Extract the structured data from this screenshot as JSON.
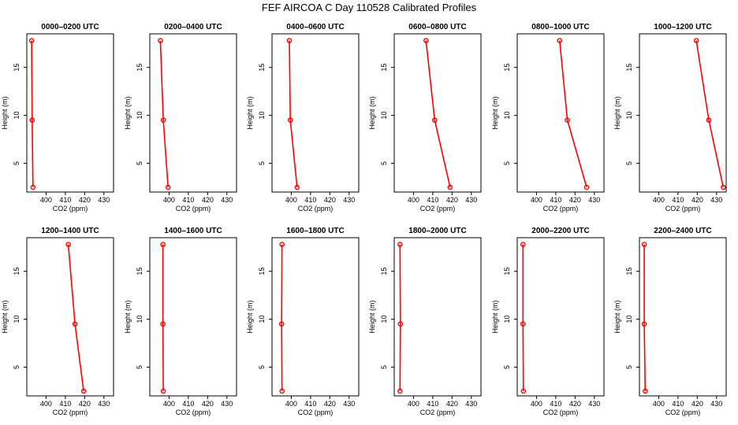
{
  "figure_title": "FEF AIRCOA C  Day 110528  Calibrated Profiles",
  "chart_data": [
    {
      "type": "line",
      "title": "0000–0200 UTC",
      "xlabel": "CO2 (ppm)",
      "ylabel": "Height (m)",
      "xlim": [
        390,
        435
      ],
      "ylim": [
        2,
        18.5
      ],
      "xticks": [
        400,
        410,
        420,
        430
      ],
      "yticks": [
        5,
        10,
        15
      ],
      "grid": false,
      "series": [
        {
          "color": "#ff0000",
          "points": [
            {
              "x": 392.5,
              "y": 17.8
            },
            {
              "x": 392.8,
              "y": 9.5
            },
            {
              "x": 393.2,
              "y": 2.5
            }
          ]
        }
      ]
    },
    {
      "type": "line",
      "title": "0200–0400 UTC",
      "xlabel": "CO2 (ppm)",
      "ylabel": "Height (m)",
      "xlim": [
        390,
        435
      ],
      "ylim": [
        2,
        18.5
      ],
      "xticks": [
        400,
        410,
        420,
        430
      ],
      "yticks": [
        5,
        10,
        15
      ],
      "grid": false,
      "series": [
        {
          "color": "#ff0000",
          "points": [
            {
              "x": 395.5,
              "y": 17.8
            },
            {
              "x": 397.0,
              "y": 9.5
            },
            {
              "x": 399.5,
              "y": 2.5
            }
          ]
        }
      ]
    },
    {
      "type": "line",
      "title": "0400–0600 UTC",
      "xlabel": "CO2 (ppm)",
      "ylabel": "Height (m)",
      "xlim": [
        390,
        435
      ],
      "ylim": [
        2,
        18.5
      ],
      "xticks": [
        400,
        410,
        420,
        430
      ],
      "yticks": [
        5,
        10,
        15
      ],
      "grid": false,
      "series": [
        {
          "color": "#ff0000",
          "points": [
            {
              "x": 399.0,
              "y": 17.8
            },
            {
              "x": 399.5,
              "y": 9.5
            },
            {
              "x": 403.0,
              "y": 2.5
            }
          ]
        }
      ]
    },
    {
      "type": "line",
      "title": "0600–0800 UTC",
      "xlabel": "CO2 (ppm)",
      "ylabel": "Height (m)",
      "xlim": [
        390,
        435
      ],
      "ylim": [
        2,
        18.5
      ],
      "xticks": [
        400,
        410,
        420,
        430
      ],
      "yticks": [
        5,
        10,
        15
      ],
      "grid": false,
      "series": [
        {
          "color": "#ff0000",
          "points": [
            {
              "x": 406.5,
              "y": 17.8
            },
            {
              "x": 411.0,
              "y": 9.5
            },
            {
              "x": 419.0,
              "y": 2.5
            }
          ]
        }
      ]
    },
    {
      "type": "line",
      "title": "0800–1000 UTC",
      "xlabel": "CO2 (ppm)",
      "ylabel": "Height (m)",
      "xlim": [
        390,
        435
      ],
      "ylim": [
        2,
        18.5
      ],
      "xticks": [
        400,
        410,
        420,
        430
      ],
      "yticks": [
        5,
        10,
        15
      ],
      "grid": false,
      "series": [
        {
          "color": "#ff0000",
          "points": [
            {
              "x": 412.0,
              "y": 17.8
            },
            {
              "x": 416.0,
              "y": 9.5
            },
            {
              "x": 426.0,
              "y": 2.5
            }
          ]
        }
      ]
    },
    {
      "type": "line",
      "title": "1000–1200 UTC",
      "xlabel": "CO2 (ppm)",
      "ylabel": "Height (m)",
      "xlim": [
        390,
        435
      ],
      "ylim": [
        2,
        18.5
      ],
      "xticks": [
        400,
        410,
        420,
        430
      ],
      "yticks": [
        5,
        10,
        15
      ],
      "grid": false,
      "series": [
        {
          "color": "#ff0000",
          "points": [
            {
              "x": 419.5,
              "y": 17.8
            },
            {
              "x": 426.0,
              "y": 9.5
            },
            {
              "x": 433.5,
              "y": 2.5
            }
          ]
        }
      ]
    },
    {
      "type": "line",
      "title": "1200–1400 UTC",
      "xlabel": "CO2 (ppm)",
      "ylabel": "Height (m)",
      "xlim": [
        390,
        435
      ],
      "ylim": [
        2,
        18.5
      ],
      "xticks": [
        400,
        410,
        420,
        430
      ],
      "yticks": [
        5,
        10,
        15
      ],
      "grid": false,
      "series": [
        {
          "color": "#ff0000",
          "points": [
            {
              "x": 411.5,
              "y": 17.8
            },
            {
              "x": 415.0,
              "y": 9.5
            },
            {
              "x": 419.5,
              "y": 2.5
            }
          ]
        }
      ]
    },
    {
      "type": "line",
      "title": "1400–1600 UTC",
      "xlabel": "CO2 (ppm)",
      "ylabel": "Height (m)",
      "xlim": [
        390,
        435
      ],
      "ylim": [
        2,
        18.5
      ],
      "xticks": [
        400,
        410,
        420,
        430
      ],
      "yticks": [
        5,
        10,
        15
      ],
      "grid": false,
      "series": [
        {
          "color": "#ff0000",
          "points": [
            {
              "x": 396.8,
              "y": 17.8
            },
            {
              "x": 396.8,
              "y": 9.5
            },
            {
              "x": 397.0,
              "y": 2.5
            }
          ]
        }
      ]
    },
    {
      "type": "line",
      "title": "1600–1800 UTC",
      "xlabel": "CO2 (ppm)",
      "ylabel": "Height (m)",
      "xlim": [
        390,
        435
      ],
      "ylim": [
        2,
        18.5
      ],
      "xticks": [
        400,
        410,
        420,
        430
      ],
      "yticks": [
        5,
        10,
        15
      ],
      "grid": false,
      "series": [
        {
          "color": "#ff0000",
          "points": [
            {
              "x": 395.2,
              "y": 17.8
            },
            {
              "x": 395.0,
              "y": 9.5
            },
            {
              "x": 395.2,
              "y": 2.5
            }
          ]
        }
      ]
    },
    {
      "type": "line",
      "title": "1800–2000 UTC",
      "xlabel": "CO2 (ppm)",
      "ylabel": "Height (m)",
      "xlim": [
        390,
        435
      ],
      "ylim": [
        2,
        18.5
      ],
      "xticks": [
        400,
        410,
        420,
        430
      ],
      "yticks": [
        5,
        10,
        15
      ],
      "grid": false,
      "series": [
        {
          "color": "#ff0000",
          "points": [
            {
              "x": 393.0,
              "y": 17.8
            },
            {
              "x": 393.2,
              "y": 9.5
            },
            {
              "x": 393.0,
              "y": 2.5
            }
          ]
        }
      ]
    },
    {
      "type": "line",
      "title": "2000–2200 UTC",
      "xlabel": "CO2 (ppm)",
      "ylabel": "Height (m)",
      "xlim": [
        390,
        435
      ],
      "ylim": [
        2,
        18.5
      ],
      "xticks": [
        400,
        410,
        420,
        430
      ],
      "yticks": [
        5,
        10,
        15
      ],
      "grid": false,
      "series": [
        {
          "color": "#ff0000",
          "points": [
            {
              "x": 393.0,
              "y": 17.8
            },
            {
              "x": 393.0,
              "y": 9.5
            },
            {
              "x": 393.2,
              "y": 2.5
            }
          ]
        }
      ]
    },
    {
      "type": "line",
      "title": "2200–2400 UTC",
      "xlabel": "CO2 (ppm)",
      "ylabel": "Height (m)",
      "xlim": [
        390,
        435
      ],
      "ylim": [
        2,
        18.5
      ],
      "xticks": [
        400,
        410,
        420,
        430
      ],
      "yticks": [
        5,
        10,
        15
      ],
      "grid": false,
      "series": [
        {
          "color": "#ff0000",
          "points": [
            {
              "x": 392.5,
              "y": 17.8
            },
            {
              "x": 392.5,
              "y": 9.5
            },
            {
              "x": 393.0,
              "y": 2.5
            }
          ]
        }
      ]
    }
  ]
}
